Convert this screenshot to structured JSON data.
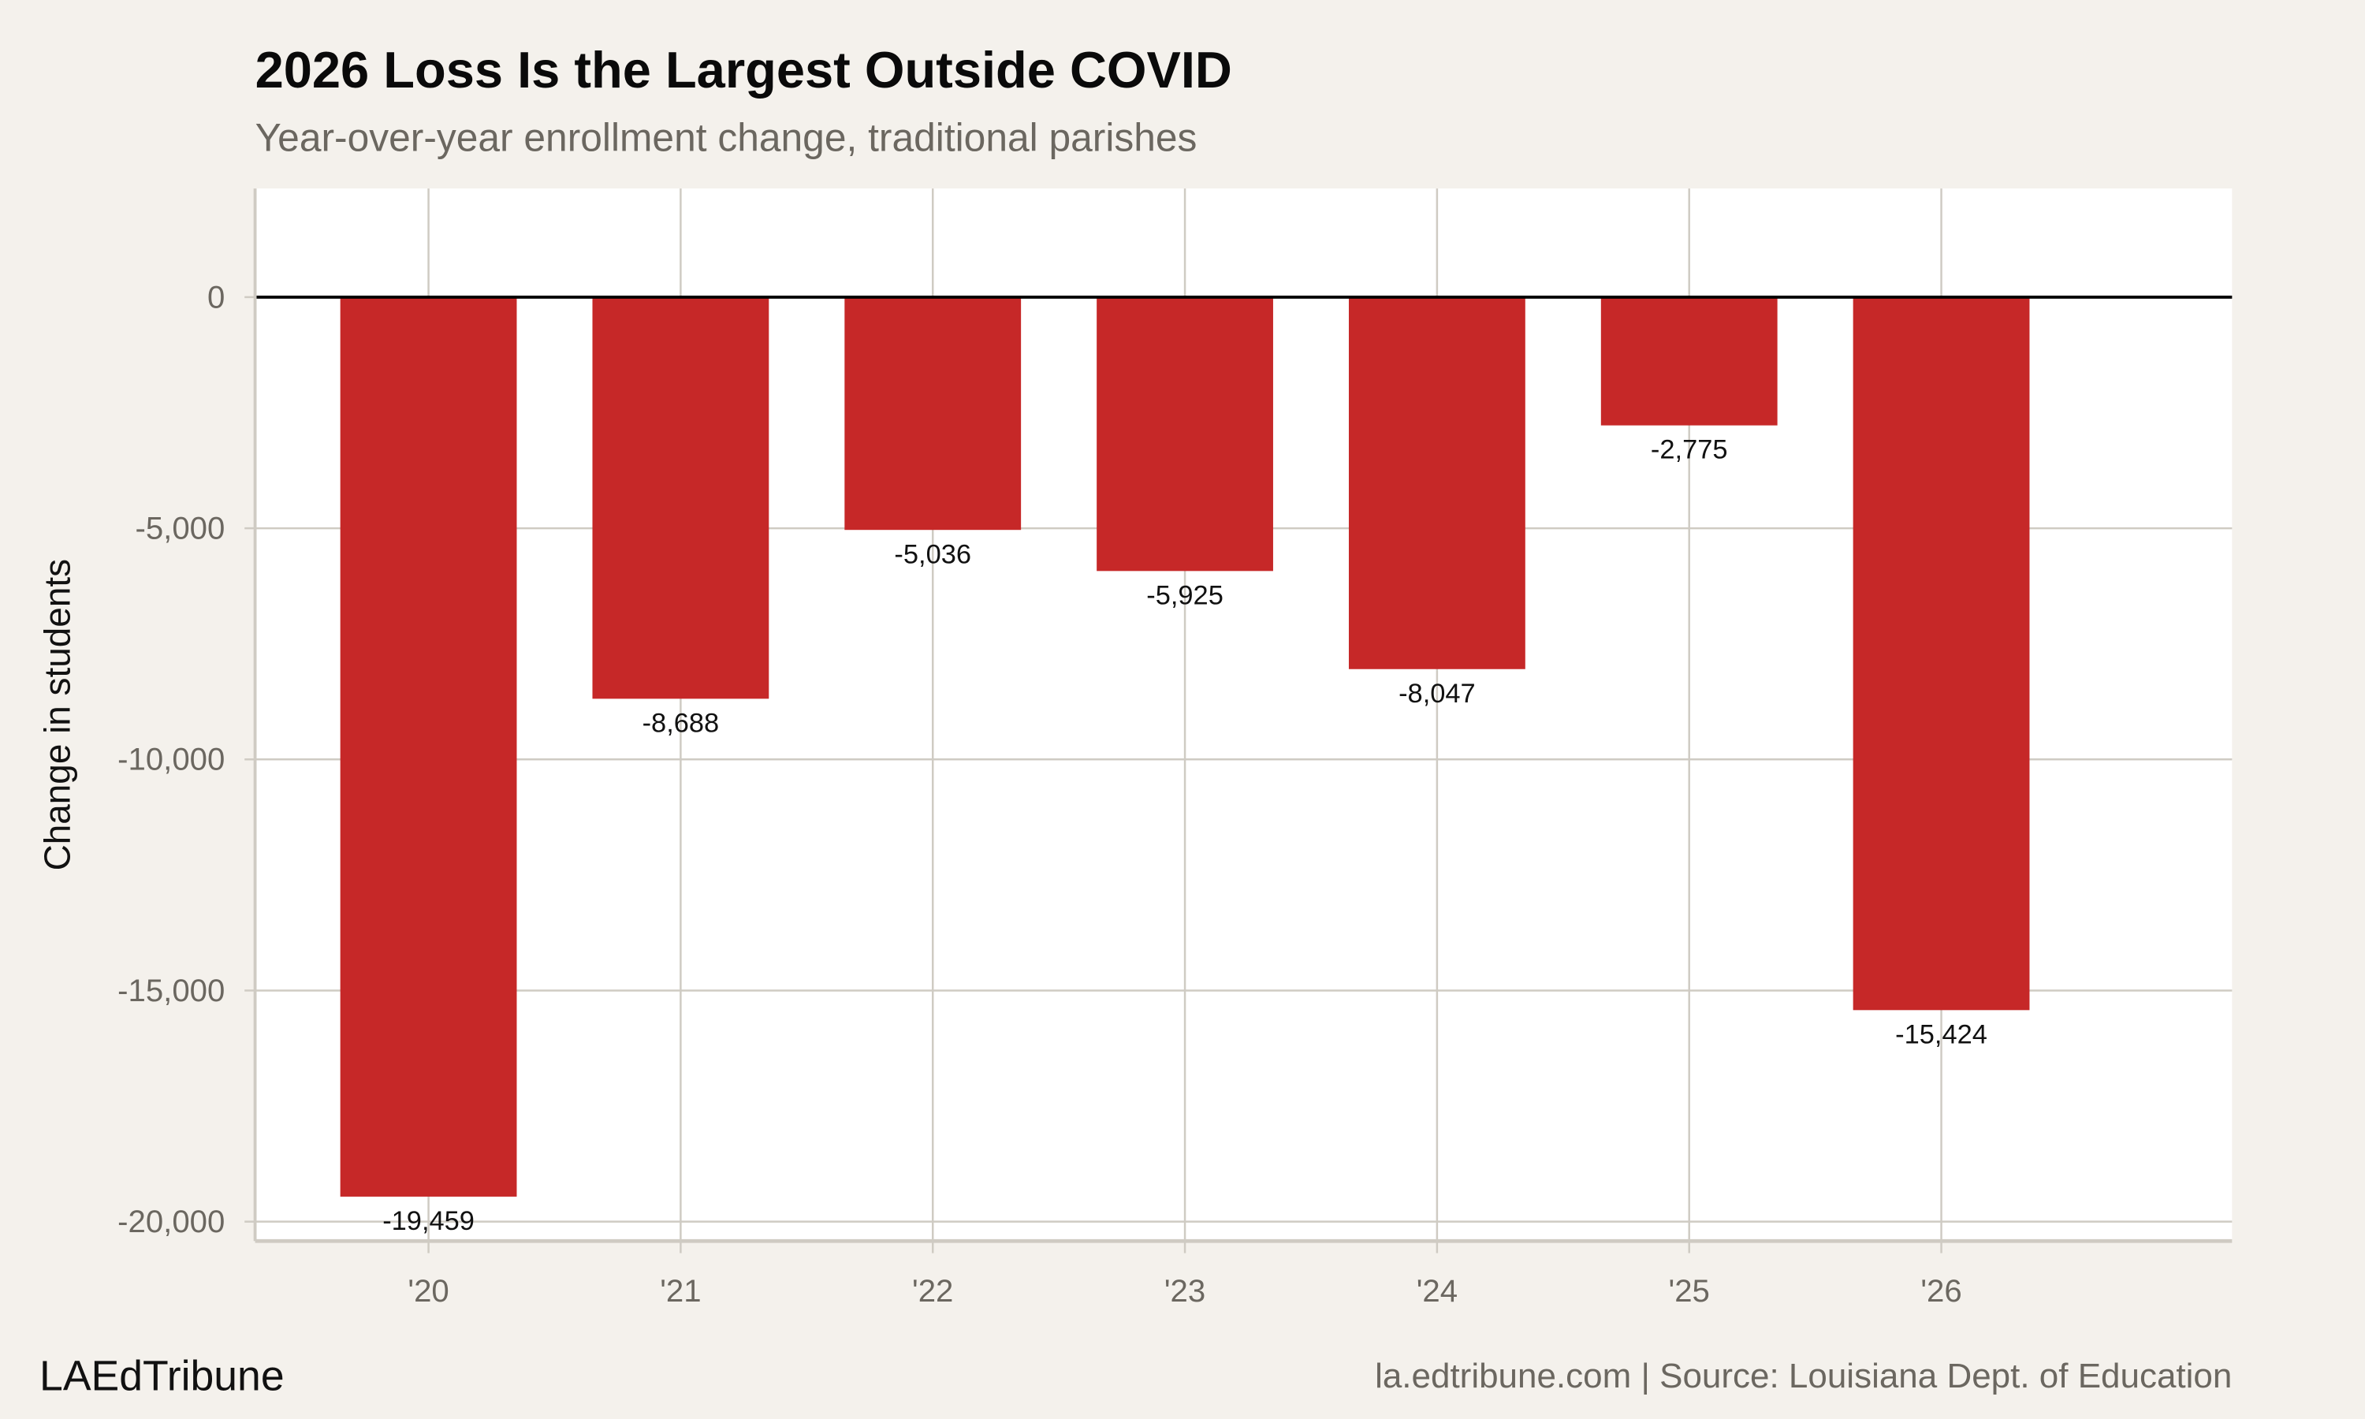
{
  "colors": {
    "background": "#f4f1ec",
    "panel": "#ffffff",
    "bar": "#c62828",
    "grid": "#cfcbc3",
    "zero_line": "#000000",
    "muted_text": "#6b6760"
  },
  "branding": {
    "logo_text": "LAEdTribune",
    "source": "la.edtribune.com | Source: Louisiana Dept. of Education"
  },
  "chart_data": {
    "type": "bar",
    "title": "2026 Loss Is the Largest Outside COVID",
    "subtitle": "Year-over-year enrollment change, traditional parishes",
    "xlabel": "",
    "ylabel": "Change in students",
    "categories": [
      "'20",
      "'21",
      "'22",
      "'23",
      "'24",
      "'25",
      "'26"
    ],
    "values": [
      -19459,
      -8688,
      -5036,
      -5925,
      -8047,
      -2775,
      -15424
    ],
    "data_labels": [
      "-19,459",
      "-8,688",
      "-5,036",
      "-5,925",
      "-8,047",
      "-2,775",
      "-15,424"
    ],
    "yticks": [
      0,
      -5000,
      -10000,
      -15000,
      -20000
    ],
    "ytick_labels": [
      "0",
      "-5,000",
      "-10,000",
      "-15,000",
      "-20,000"
    ],
    "ylim": [
      -20420,
      2350
    ],
    "grid": true,
    "legend": "none"
  }
}
